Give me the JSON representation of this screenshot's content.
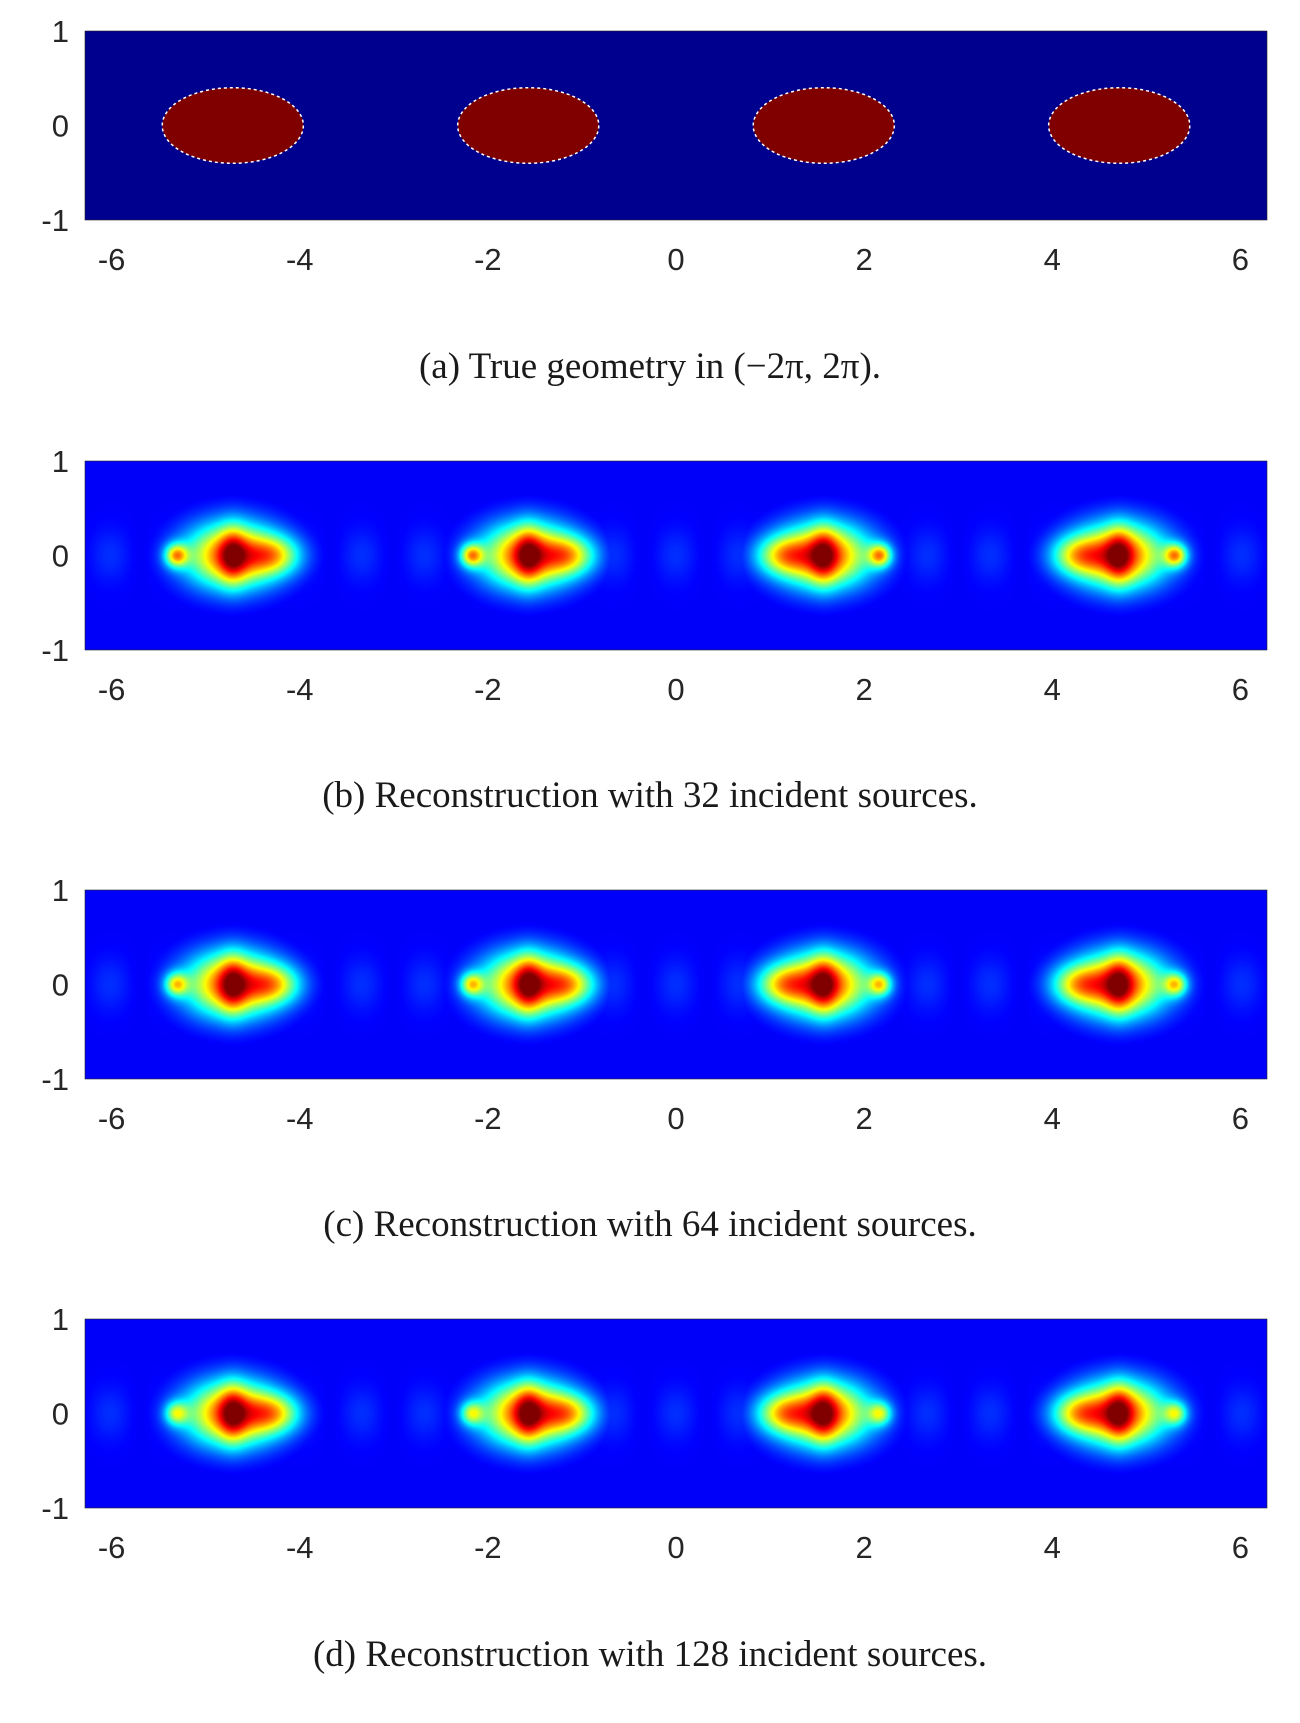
{
  "chart_data": [
    {
      "type": "heatmap",
      "panel": "a",
      "caption": "(a) True geometry in (−2π, 2π).",
      "xlim": [
        -6.2832,
        6.2832
      ],
      "ylim": [
        -1,
        1
      ],
      "x_ticks": [
        -6,
        -4,
        -2,
        0,
        2,
        4,
        6
      ],
      "y_ticks": [
        1,
        0,
        -1
      ],
      "grid": false,
      "colormap": "jet",
      "background_color": "#00008f",
      "shape_color": "#800000",
      "inclusions": [
        {
          "cx": -4.712,
          "cy": 0,
          "rx": 0.75,
          "ry": 0.4
        },
        {
          "cx": -1.571,
          "cy": 0,
          "rx": 0.75,
          "ry": 0.4
        },
        {
          "cx": 1.571,
          "cy": 0,
          "rx": 0.75,
          "ry": 0.4
        },
        {
          "cx": 4.712,
          "cy": 0,
          "rx": 0.75,
          "ry": 0.4
        }
      ]
    },
    {
      "type": "heatmap",
      "panel": "b",
      "caption": "(b) Reconstruction with 32 incident sources.",
      "incident_sources": 32,
      "xlim": [
        -6.2832,
        6.2832
      ],
      "ylim": [
        -1,
        1
      ],
      "x_ticks": [
        -6,
        -4,
        -2,
        0,
        2,
        4,
        6
      ],
      "y_ticks": [
        1,
        0,
        -1
      ],
      "grid": false,
      "colormap": "jet",
      "peak_centers": [
        -4.712,
        -1.571,
        1.571,
        4.712
      ],
      "side_lobe_offset": 0.6,
      "side_lobe_intensity": 0.9,
      "main_lobe_intensity": 1.0
    },
    {
      "type": "heatmap",
      "panel": "c",
      "caption": "(c) Reconstruction with 64 incident sources.",
      "incident_sources": 64,
      "xlim": [
        -6.2832,
        6.2832
      ],
      "ylim": [
        -1,
        1
      ],
      "x_ticks": [
        -6,
        -4,
        -2,
        0,
        2,
        4,
        6
      ],
      "y_ticks": [
        1,
        0,
        -1
      ],
      "grid": false,
      "colormap": "jet",
      "peak_centers": [
        -4.712,
        -1.571,
        1.571,
        4.712
      ],
      "side_lobe_offset": 0.6,
      "side_lobe_intensity": 0.85,
      "main_lobe_intensity": 1.0
    },
    {
      "type": "heatmap",
      "panel": "d",
      "caption": "(d) Reconstruction with 128 incident sources.",
      "incident_sources": 128,
      "xlim": [
        -6.2832,
        6.2832
      ],
      "ylim": [
        -1,
        1
      ],
      "x_ticks": [
        -6,
        -4,
        -2,
        0,
        2,
        4,
        6
      ],
      "y_ticks": [
        1,
        0,
        -1
      ],
      "grid": false,
      "colormap": "jet",
      "peak_centers": [
        -4.712,
        -1.571,
        1.571,
        4.712
      ],
      "side_lobe_offset": 0.6,
      "side_lobe_intensity": 0.8,
      "main_lobe_intensity": 1.0
    }
  ]
}
